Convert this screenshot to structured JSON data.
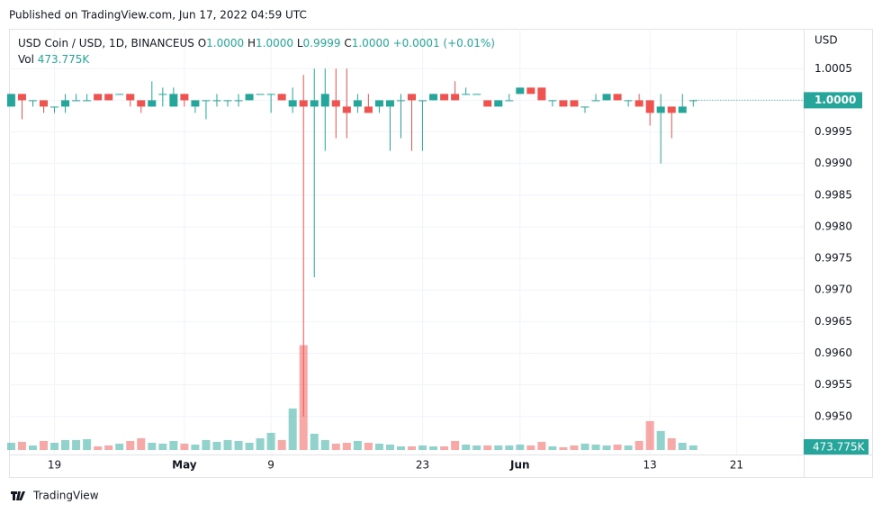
{
  "published": "Published on TradingView.com, Jun 17, 2022 04:59 UTC",
  "footer": "TradingView",
  "chart_data": {
    "type": "candlestick",
    "title": "USD Coin / USD, 1D, BINANCEUS",
    "ohlc_legend": {
      "o_label": "O",
      "o": "1.0000",
      "h_label": "H",
      "h": "1.0000",
      "l_label": "L",
      "l": "0.9999",
      "c_label": "C",
      "c": "1.0000",
      "change": "+0.0001 (+0.01%)"
    },
    "volume_title": "Vol",
    "volume_value_label": "473.775K",
    "last_price_label": "1.0000",
    "y_axis_label": "USD",
    "colors": {
      "up": "#26a69a",
      "down": "#ef5350"
    },
    "grid": true,
    "x": [
      0,
      1,
      2,
      3,
      4,
      5,
      6,
      7,
      8,
      9,
      10,
      11,
      12,
      13,
      14,
      15,
      16,
      17,
      18,
      19,
      20,
      21,
      22,
      23,
      24,
      25,
      26,
      27,
      28,
      29,
      30,
      31,
      32,
      33,
      34,
      35,
      36,
      37,
      38,
      39,
      40,
      41,
      42,
      43,
      44,
      45,
      46,
      47,
      48,
      49,
      50,
      51,
      52,
      53,
      54,
      55,
      56,
      57,
      58,
      59,
      60,
      61,
      62,
      63
    ],
    "open": [
      0.9999,
      1.0001,
      1.0,
      1.0,
      0.9999,
      0.9999,
      1.0,
      1.0,
      1.0001,
      1.0001,
      1.0001,
      1.0001,
      1.0,
      0.9999,
      1.0001,
      0.9999,
      1.0001,
      0.9999,
      1.0,
      1.0,
      1.0,
      1.0,
      1.0,
      1.0001,
      1.0001,
      1.0001,
      0.9999,
      1.0,
      0.9999,
      0.9999,
      1.0,
      0.9999,
      0.9999,
      0.9999,
      0.9999,
      0.9999,
      1.0,
      1.0001,
      1.0,
      1.0,
      1.0001,
      1.0001,
      1.0001,
      1.0001,
      1.0,
      0.9999,
      1.0,
      1.0001,
      1.0002,
      1.0002,
      1.0,
      1.0,
      1.0,
      0.9999,
      1.0,
      1.0,
      1.0001,
      1.0,
      1.0,
      1.0,
      0.9998,
      0.9999,
      0.9998,
      1.0
    ],
    "high": [
      1.0001,
      1.0001,
      1.0,
      1.0,
      0.9999,
      1.0001,
      1.0001,
      1.0001,
      1.0001,
      1.0001,
      1.0001,
      1.0001,
      1.0,
      1.0003,
      1.0002,
      1.0002,
      1.0001,
      1.0,
      1.0,
      1.0001,
      1.0,
      1.0001,
      1.0001,
      1.0001,
      1.0001,
      1.0001,
      1.0002,
      1.0004,
      1.0005,
      1.0005,
      1.0005,
      1.0005,
      1.0001,
      1.0001,
      1.0,
      1.0,
      1.0001,
      1.0001,
      1.0,
      1.0001,
      1.0001,
      1.0003,
      1.0002,
      1.0001,
      1.0,
      1.0,
      1.0001,
      1.0002,
      1.0002,
      1.0002,
      1.0,
      1.0,
      1.0,
      0.9999,
      1.0001,
      1.0001,
      1.0001,
      1.0,
      1.0001,
      1.0,
      1.0001,
      0.9999,
      1.0001,
      1.0
    ],
    "low": [
      0.9999,
      0.9997,
      0.9999,
      0.9998,
      0.9998,
      0.9998,
      1.0,
      1.0,
      1.0,
      1.0,
      1.0001,
      0.9999,
      0.9998,
      0.9999,
      0.9999,
      0.9999,
      0.9999,
      0.9998,
      0.9997,
      0.9999,
      0.9999,
      0.9999,
      1.0,
      1.0001,
      0.9998,
      1.0,
      0.9998,
      0.995,
      0.9972,
      0.9992,
      0.9994,
      0.9994,
      0.9998,
      0.9998,
      0.9998,
      0.9992,
      0.9994,
      0.9992,
      0.9992,
      1.0,
      1.0,
      1.0,
      1.0001,
      1.0001,
      0.9999,
      0.9999,
      1.0,
      1.0001,
      1.0001,
      1.0,
      0.9999,
      0.9999,
      0.9999,
      0.9998,
      1.0,
      1.0,
      1.0,
      0.9999,
      0.9999,
      0.9996,
      0.999,
      0.9994,
      0.9998,
      0.9999
    ],
    "close": [
      1.0001,
      1.0,
      1.0,
      0.9999,
      0.9999,
      1.0,
      1.0,
      1.0,
      1.0,
      1.0,
      1.0001,
      1.0,
      0.9999,
      1.0,
      1.0001,
      1.0001,
      1.0,
      1.0,
      1.0,
      1.0,
      1.0,
      1.0,
      1.0001,
      1.0001,
      1.0001,
      1.0,
      1.0,
      0.9999,
      1.0,
      1.0001,
      0.9999,
      0.9998,
      1.0,
      0.9998,
      1.0,
      1.0,
      1.0,
      1.0,
      1.0,
      1.0001,
      1.0,
      1.0,
      1.0001,
      1.0001,
      0.9999,
      1.0,
      1.0,
      1.0002,
      1.0001,
      1.0,
      1.0,
      0.9999,
      0.9999,
      0.9999,
      1.0,
      1.0001,
      1.0,
      1.0,
      0.9999,
      0.9998,
      0.9999,
      0.9998,
      0.9999,
      1.0
    ],
    "volume": [
      755,
      850,
      472,
      944,
      755,
      1038,
      1038,
      1133,
      378,
      472,
      661,
      944,
      1227,
      755,
      661,
      944,
      661,
      566,
      1038,
      850,
      1038,
      944,
      755,
      1227,
      1794,
      1038,
      4342,
      10950,
      1699,
      1038,
      661,
      755,
      944,
      755,
      661,
      566,
      378,
      378,
      472,
      378,
      378,
      944,
      566,
      472,
      472,
      472,
      472,
      566,
      472,
      850,
      378,
      283,
      472,
      661,
      566,
      472,
      566,
      472,
      944,
      3021,
      1982,
      1227,
      755,
      473.775
    ],
    "xlim": [
      -0.2,
      73.2
    ],
    "xticks": [
      {
        "value": 4,
        "label": "19"
      },
      {
        "value": 16,
        "label": "May"
      },
      {
        "value": 24,
        "label": "9"
      },
      {
        "value": 38,
        "label": "23"
      },
      {
        "value": 47,
        "label": "Jun"
      },
      {
        "value": 59,
        "label": "13"
      },
      {
        "value": 67,
        "label": "21"
      }
    ],
    "ylim": [
      0.99447,
      1.00113
    ],
    "yticks": [
      {
        "value": 0.995,
        "label": "0.9950"
      },
      0.9955,
      {
        "value": 0.996,
        "label": "0.9960"
      },
      0.9965,
      {
        "value": 0.997,
        "label": "0.9970"
      },
      0.9975,
      {
        "value": 0.998,
        "label": "0.9980"
      },
      0.9985,
      {
        "value": 0.999,
        "label": "0.9990"
      },
      0.9995,
      {
        "value": 1,
        "label": "1.0000"
      },
      1.0005
    ],
    "volume_ylim": [
      0,
      44000
    ]
  }
}
